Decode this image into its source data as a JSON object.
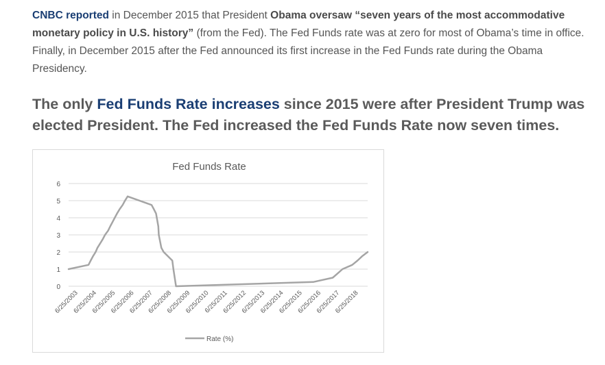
{
  "intro": {
    "link": "CNBC reported",
    "text1": " in December 2015 that President ",
    "bold": "Obama oversaw “seven years of the most accommodative monetary policy in U.S. history”",
    "text2": " (from the Fed). The Fed Funds rate was at zero for most of Obama’s time in office. Finally, in December 2015 after the Fed announced its first increase in the Fed Funds rate during the Obama Presidency."
  },
  "heading": {
    "text1": "The only ",
    "link": "Fed Funds Rate increases",
    "text2": " since 2015 were after President Trump was elected President. The Fed increased the Fed Funds Rate now seven times."
  },
  "colors": {
    "link": "#1a3e73",
    "series": "#a5a5a5",
    "grid": "#d9d9d9"
  },
  "chart_data": {
    "type": "line",
    "title": "Fed Funds Rate",
    "xlabel": "",
    "ylabel": "",
    "ylim": [
      0,
      6
    ],
    "yticks": [
      0,
      1,
      2,
      3,
      4,
      5,
      6
    ],
    "x_tick_labels": [
      "6/25/2003",
      "6/25/2004",
      "6/25/2005",
      "6/25/2006",
      "6/25/2007",
      "6/25/2008",
      "6/25/2009",
      "6/25/2010",
      "6/25/2011",
      "6/25/2012",
      "6/25/2013",
      "6/25/2014",
      "6/25/2015",
      "6/25/2016",
      "6/25/2017",
      "6/25/2018"
    ],
    "grid": true,
    "legend_position": "bottom",
    "series": [
      {
        "name": "Rate (%)",
        "points": [
          [
            "2003-06-25",
            1.0
          ],
          [
            "2004-06-30",
            1.25
          ],
          [
            "2004-08-10",
            1.5
          ],
          [
            "2004-09-21",
            1.75
          ],
          [
            "2004-11-10",
            2.0
          ],
          [
            "2004-12-14",
            2.25
          ],
          [
            "2005-02-02",
            2.5
          ],
          [
            "2005-03-22",
            2.75
          ],
          [
            "2005-05-03",
            3.0
          ],
          [
            "2005-06-30",
            3.25
          ],
          [
            "2005-08-09",
            3.5
          ],
          [
            "2005-09-20",
            3.75
          ],
          [
            "2005-11-01",
            4.0
          ],
          [
            "2005-12-13",
            4.25
          ],
          [
            "2006-01-31",
            4.5
          ],
          [
            "2006-03-28",
            4.75
          ],
          [
            "2006-05-10",
            5.0
          ],
          [
            "2006-06-29",
            5.25
          ],
          [
            "2007-09-18",
            4.75
          ],
          [
            "2007-10-31",
            4.5
          ],
          [
            "2007-12-11",
            4.25
          ],
          [
            "2008-01-22",
            3.5
          ],
          [
            "2008-01-30",
            3.0
          ],
          [
            "2008-03-18",
            2.25
          ],
          [
            "2008-04-30",
            2.0
          ],
          [
            "2008-10-08",
            1.5
          ],
          [
            "2008-10-29",
            1.0
          ],
          [
            "2008-12-16",
            0.0
          ],
          [
            "2015-12-16",
            0.25
          ],
          [
            "2016-12-14",
            0.5
          ],
          [
            "2017-03-15",
            0.75
          ],
          [
            "2017-06-14",
            1.0
          ],
          [
            "2017-12-13",
            1.25
          ],
          [
            "2018-03-21",
            1.5
          ],
          [
            "2018-06-13",
            1.75
          ],
          [
            "2018-09-26",
            2.0
          ]
        ]
      }
    ]
  }
}
